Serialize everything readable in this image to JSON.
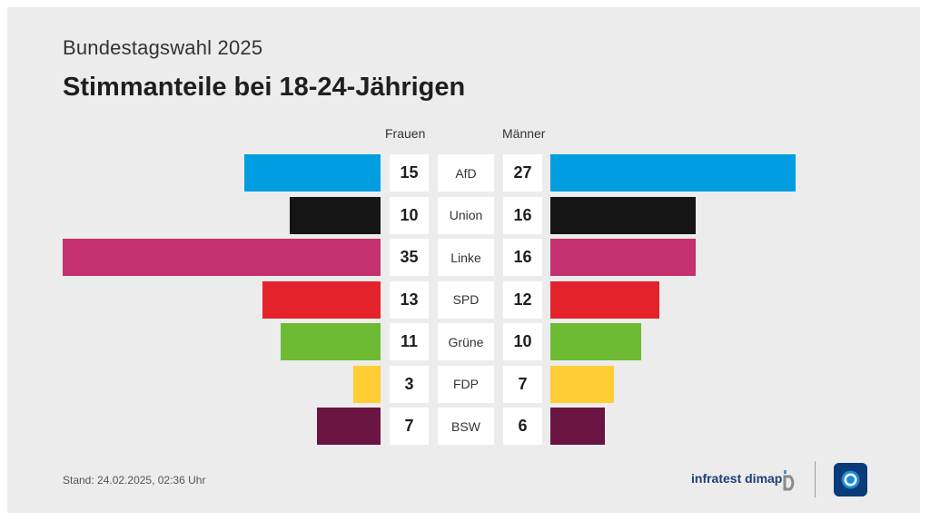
{
  "header": {
    "subtitle": "Bundestagswahl 2025",
    "title": "Stimmanteile bei 18-24-Jährigen"
  },
  "columns": {
    "left": "Frauen",
    "right": "Männer"
  },
  "chart_data": {
    "type": "bar",
    "orientation": "horizontal-diverging",
    "title": "Stimmanteile bei 18-24-Jährigen",
    "categories": [
      "AfD",
      "Union",
      "Linke",
      "SPD",
      "Grüne",
      "FDP",
      "BSW"
    ],
    "series": [
      {
        "name": "Frauen",
        "values": [
          15,
          10,
          35,
          13,
          11,
          3,
          7
        ]
      },
      {
        "name": "Männer",
        "values": [
          27,
          16,
          16,
          12,
          10,
          7,
          6
        ]
      }
    ],
    "colors": [
      "#009ee0",
      "#151515",
      "#c5306f",
      "#e3222b",
      "#6cbb32",
      "#ffcd34",
      "#6a1541"
    ]
  },
  "footer": {
    "stand": "Stand:  24.02.2025, 02:36 Uhr",
    "source": "infratest dimap"
  },
  "logos": {
    "source_icon": "infratest-dimap-icon",
    "broadcaster_icon": "ard-logo-icon"
  }
}
